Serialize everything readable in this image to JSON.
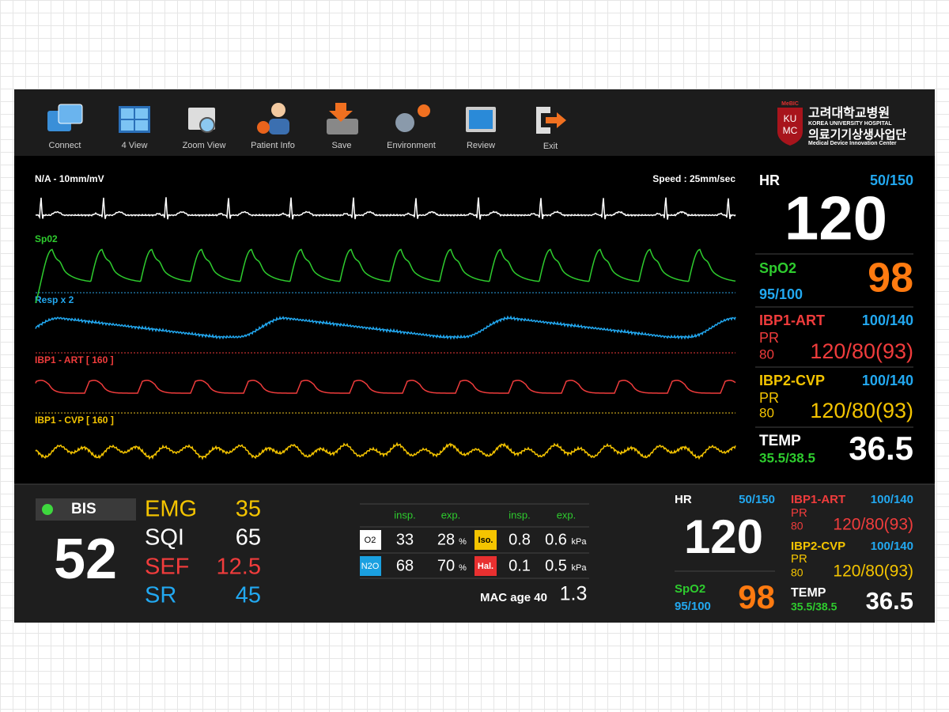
{
  "toolbar": {
    "items": [
      "Connect",
      "4 View",
      "Zoom View",
      "Patient Info",
      "Save",
      "Environment",
      "Review",
      "Exit"
    ]
  },
  "logo": {
    "badge": "MeBIC",
    "mark": [
      "KU",
      "MC"
    ],
    "name_ko": "고려대학교병원",
    "name_en": "KOREA UNIVERSITY HOSPITAL",
    "center_ko": "의료기기상생사업단",
    "center_en": "Medical Device Innovation Center"
  },
  "waveforms": {
    "scale": "N/A - 10mm/mV",
    "speed": "Speed : 25mm/sec",
    "channels": [
      "Sp02",
      "Resp x 2",
      "IBP1 - ART [ 160 ]",
      "IBP1 - CVP [ 160 ]"
    ]
  },
  "vitals": {
    "hr": {
      "label": "HR",
      "range": "50/150",
      "value": "120"
    },
    "spo2": {
      "label": "SpO2",
      "range": "95/100",
      "value": "98"
    },
    "ibp1": {
      "label": "IBP1-ART",
      "range": "100/140",
      "pr_label": "PR",
      "pr_value": "80",
      "value": "120/80(93)"
    },
    "ibp2": {
      "label": "IBP2-CVP",
      "range": "100/140",
      "pr_label": "PR",
      "pr_value": "80",
      "value": "120/80(93)"
    },
    "temp": {
      "label": "TEMP",
      "range": "35.5/38.5",
      "value": "36.5"
    }
  },
  "bis": {
    "label": "BIS",
    "value": "52",
    "params": [
      {
        "name": "EMG",
        "value": "35"
      },
      {
        "name": "SQI",
        "value": "65"
      },
      {
        "name": "SEF",
        "value": "12.5"
      },
      {
        "name": "SR",
        "value": "45"
      }
    ]
  },
  "gas": {
    "headers": [
      "insp.",
      "exp.",
      "insp.",
      "exp."
    ],
    "rows": [
      {
        "agent": "O2",
        "insp": "33",
        "exp": "28",
        "unit": "%",
        "agent2": "Iso.",
        "insp2": "0.8",
        "exp2": "0.6",
        "unit2": "kPa"
      },
      {
        "agent": "N2O",
        "insp": "68",
        "exp": "70",
        "unit": "%",
        "agent2": "Hal.",
        "insp2": "0.1",
        "exp2": "0.5",
        "unit2": "kPa"
      }
    ],
    "mac_label": "MAC age 40",
    "mac_value": "1.3"
  },
  "mini_vitals": {
    "hr": {
      "label": "HR",
      "range": "50/150",
      "value": "120"
    },
    "spo2": {
      "label": "SpO2",
      "range": "95/100",
      "value": "98"
    },
    "ibp1": {
      "label": "IBP1-ART",
      "range": "100/140",
      "pr_label": "PR",
      "pr_value": "80",
      "value": "120/80(93)"
    },
    "ibp2": {
      "label": "IBP2-CVP",
      "range": "100/140",
      "pr_label": "PR",
      "pr_value": "80",
      "value": "120/80(93)"
    },
    "temp": {
      "label": "TEMP",
      "range": "35.5/38.5",
      "value": "36.5"
    }
  }
}
